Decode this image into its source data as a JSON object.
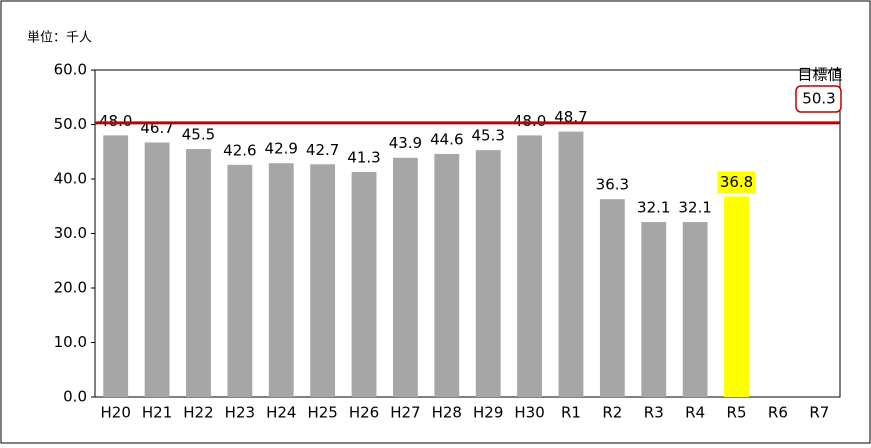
{
  "chart_data": {
    "type": "bar",
    "unit_label": "単位：千人",
    "categories": [
      "H20",
      "H21",
      "H22",
      "H23",
      "H24",
      "H25",
      "H26",
      "H27",
      "H28",
      "H29",
      "H30",
      "R1",
      "R2",
      "R3",
      "R4",
      "R5",
      "R6",
      "R7"
    ],
    "values": [
      48.0,
      46.7,
      45.5,
      42.6,
      42.9,
      42.7,
      41.3,
      43.9,
      44.6,
      45.3,
      48.0,
      48.7,
      36.3,
      32.1,
      32.1,
      36.8,
      null,
      null
    ],
    "value_labels": [
      "48.0",
      "46.7",
      "45.5",
      "42.6",
      "42.9",
      "42.7",
      "41.3",
      "43.9",
      "44.6",
      "45.3",
      "48.0",
      "48.7",
      "36.3",
      "32.1",
      "32.1",
      "36.8",
      null,
      null
    ],
    "colors": [
      "#a6a6a6",
      "#a6a6a6",
      "#a6a6a6",
      "#a6a6a6",
      "#a6a6a6",
      "#a6a6a6",
      "#a6a6a6",
      "#a6a6a6",
      "#a6a6a6",
      "#a6a6a6",
      "#a6a6a6",
      "#a6a6a6",
      "#a6a6a6",
      "#a6a6a6",
      "#a6a6a6",
      "#ffff00",
      "#a6a6a6",
      "#a6a6a6"
    ],
    "label_backgrounds": [
      null,
      null,
      null,
      null,
      null,
      null,
      null,
      null,
      null,
      null,
      null,
      null,
      null,
      null,
      null,
      "#ffff00",
      null,
      null
    ],
    "ylim": [
      0,
      60
    ],
    "yticks": [
      {
        "value": 0,
        "label": "0.0"
      },
      {
        "value": 10,
        "label": "10.0"
      },
      {
        "value": 20,
        "label": "20.0"
      },
      {
        "value": 30,
        "label": "30.0"
      },
      {
        "value": 40,
        "label": "40.0"
      },
      {
        "value": 50,
        "label": "50.0"
      },
      {
        "value": 60,
        "label": "60.0"
      }
    ],
    "target": {
      "label": "目標値",
      "value": 50.3,
      "value_label": "50.3",
      "color": "#c00000"
    }
  }
}
